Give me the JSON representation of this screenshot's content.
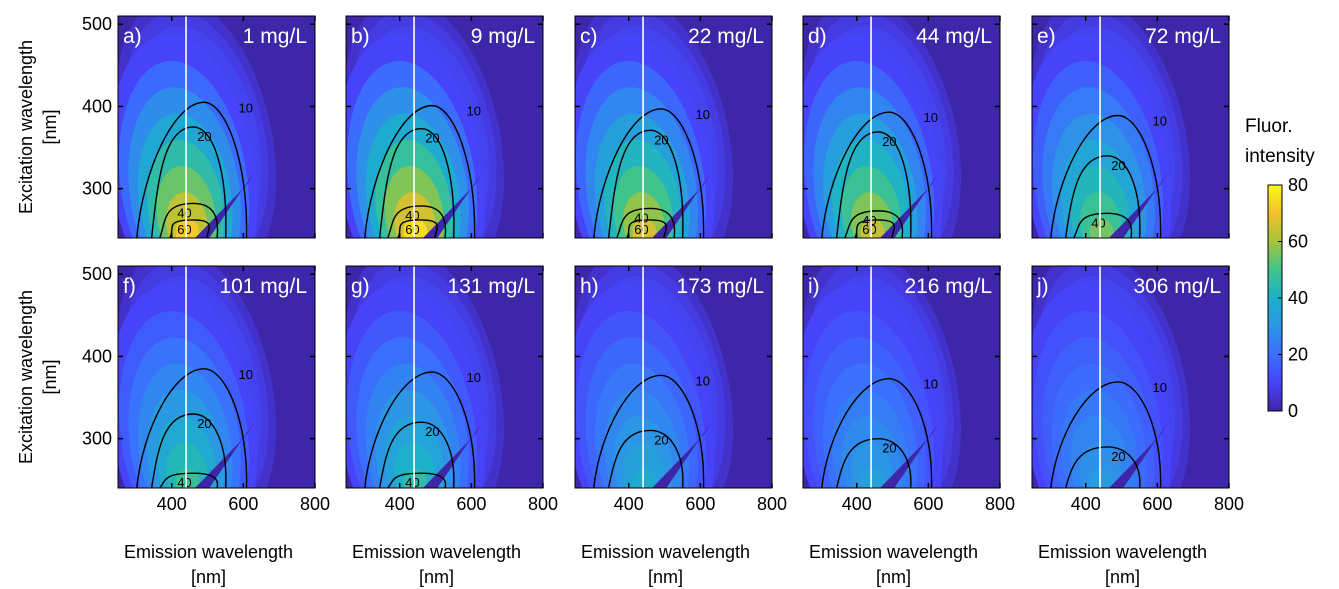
{
  "chart_data": {
    "type": "heatmap",
    "description_panels": "Excitation-emission matrices at increasing concentration",
    "x_axis": {
      "label_line1": "Emission wavelength",
      "label_line2": "[nm]",
      "range": [
        250,
        800
      ],
      "ticks": [
        400,
        600,
        800
      ]
    },
    "y_axis": {
      "label_line1": "Excitation wavelength",
      "label_line2": "[nm]",
      "range": [
        240,
        510
      ],
      "ticks": [
        300,
        400,
        500
      ]
    },
    "reference_line_emission_nm": 440,
    "colorbar": {
      "title_line1": "Fluor.",
      "title_line2": "intensity",
      "range": [
        0,
        80
      ],
      "ticks": [
        0,
        20,
        40,
        60,
        80
      ],
      "colormap": "parula"
    },
    "panels": [
      {
        "id": "a)",
        "concentration": "1 mg/L",
        "peak_intensity": 72,
        "contours": [
          10,
          20,
          40,
          60
        ]
      },
      {
        "id": "b)",
        "concentration": "9 mg/L",
        "peak_intensity": 75,
        "contours": [
          10,
          20,
          40,
          60
        ]
      },
      {
        "id": "c)",
        "concentration": "22 mg/L",
        "peak_intensity": 66,
        "contours": [
          10,
          20,
          40,
          60
        ]
      },
      {
        "id": "d)",
        "concentration": "44 mg/L",
        "peak_intensity": 64,
        "contours": [
          10,
          20,
          40,
          60
        ]
      },
      {
        "id": "e)",
        "concentration": "72 mg/L",
        "peak_intensity": 55,
        "contours": [
          10,
          20,
          40
        ]
      },
      {
        "id": "f)",
        "concentration": "101 mg/L",
        "peak_intensity": 48,
        "contours": [
          10,
          20,
          40
        ]
      },
      {
        "id": "g)",
        "concentration": "131 mg/L",
        "peak_intensity": 45,
        "contours": [
          10,
          20,
          40
        ]
      },
      {
        "id": "h)",
        "concentration": "173 mg/L",
        "peak_intensity": 38,
        "contours": [
          10,
          20
        ]
      },
      {
        "id": "i)",
        "concentration": "216 mg/L",
        "peak_intensity": 34,
        "contours": [
          10,
          20
        ]
      },
      {
        "id": "j)",
        "concentration": "306 mg/L",
        "peak_intensity": 32,
        "contours": [
          10,
          20
        ]
      }
    ]
  }
}
